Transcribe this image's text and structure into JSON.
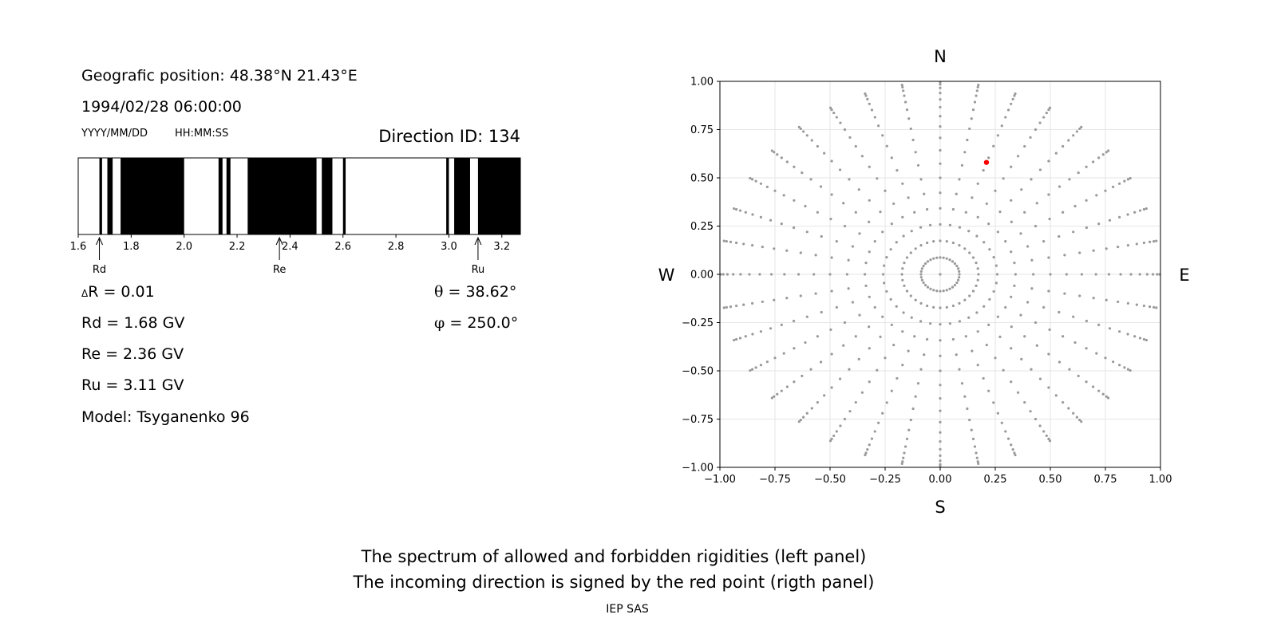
{
  "info": {
    "position": "Geografic position: 48.38°N 21.43°E",
    "datetime": "1994/02/28 06:00:00",
    "date_format": "YYYY/MM/DD",
    "time_format": "HH:MM:SS",
    "direction_id": "Direction ID: 134"
  },
  "params": {
    "delta_r_symbol": "Δ",
    "delta_r": "R = 0.01",
    "rd": "Rd = 1.68 GV",
    "re": "Re = 2.36 GV",
    "ru": "Ru = 3.11 GV",
    "model": "Model: Tsyganenko 96",
    "theta_symbol": "θ",
    "theta": "= 38.62°",
    "phi_symbol": "φ",
    "phi": "= 250.0°"
  },
  "caption": {
    "line1": "The spectrum of allowed and forbidden rigidities (left panel)",
    "line2": "The incoming direction is signed by the red point (rigth panel)",
    "credit": "IEP SAS"
  },
  "chart_data": [
    {
      "type": "bar",
      "xlim": [
        1.6,
        3.27
      ],
      "xticks": [
        1.6,
        1.8,
        2.0,
        2.2,
        2.4,
        2.6,
        2.8,
        3.0,
        3.2
      ],
      "xtick_labels": [
        "1.6",
        "1.8",
        "2.0",
        "2.2",
        "2.4",
        "2.6",
        "2.8",
        "3.0",
        "3.2"
      ],
      "forbidden_color": "#000000",
      "allowed_color": "#ffffff",
      "forbidden_intervals": [
        [
          1.68,
          1.69
        ],
        [
          1.71,
          1.73
        ],
        [
          1.76,
          2.0
        ],
        [
          2.13,
          2.145
        ],
        [
          2.16,
          2.175
        ],
        [
          2.24,
          2.5
        ],
        [
          2.52,
          2.56
        ],
        [
          2.6,
          2.61
        ],
        [
          2.99,
          3.0
        ],
        [
          3.02,
          3.08
        ],
        [
          3.11,
          3.27
        ]
      ],
      "markers": [
        {
          "label": "Rd",
          "value": 1.68
        },
        {
          "label": "Re",
          "value": 2.36
        },
        {
          "label": "Ru",
          "value": 3.11
        }
      ]
    },
    {
      "type": "scatter",
      "xlim": [
        -1.0,
        1.0
      ],
      "ylim": [
        -1.0,
        1.0
      ],
      "xticks": [
        -1.0,
        -0.75,
        -0.5,
        -0.25,
        0.0,
        0.25,
        0.5,
        0.75,
        1.0
      ],
      "xtick_labels": [
        "−1.00",
        "−0.75",
        "−0.50",
        "−0.25",
        "0.00",
        "0.25",
        "0.50",
        "0.75",
        "1.00"
      ],
      "yticks": [
        1.0,
        0.75,
        0.5,
        0.25,
        0.0,
        -0.25,
        -0.5,
        -0.75,
        -1.0
      ],
      "ytick_labels": [
        "1.00",
        "0.75",
        "0.50",
        "0.25",
        "0.00",
        "−0.25",
        "−0.50",
        "−0.75",
        "−1.00"
      ],
      "grid": true,
      "compass": {
        "north": "N",
        "south": "S",
        "west": "W",
        "east": "E"
      },
      "grid_points": {
        "color": "#999999",
        "theta_step_deg": 5,
        "theta_max_deg": 85,
        "azimuth_step_deg": 10,
        "azimuth_offset_deg": 0
      },
      "highlight": {
        "x": 0.21,
        "y": 0.58,
        "color": "#ff0000"
      }
    }
  ]
}
